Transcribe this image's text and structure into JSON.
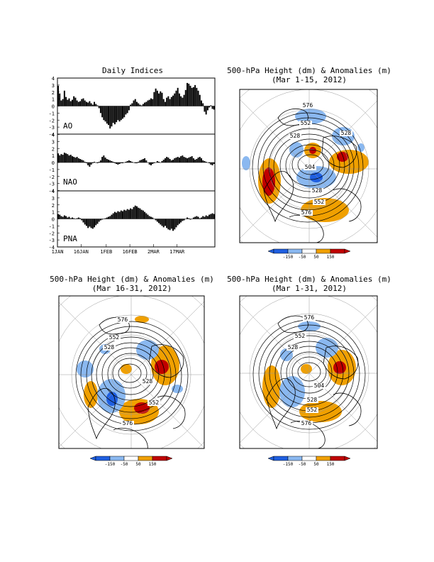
{
  "indices_panel": {
    "title": "Daily Indices",
    "x_tick_labels": [
      "1JAN",
      "16JAN",
      "1FEB",
      "16FEB",
      "2MAR",
      "17MAR"
    ],
    "y_tick_labels": [
      "4",
      "3",
      "2",
      "1",
      "0",
      "-1",
      "-2",
      "-3",
      "-4"
    ]
  },
  "maps": [
    {
      "title": "500-hPa Height (dm) & Anomalies (m)",
      "subtitle": "(Mar 1-15, 2012)",
      "contour_labels": [
        "576",
        "552",
        "528",
        "528",
        "504",
        "528",
        "552",
        "576"
      ],
      "colorbar": [
        "-150",
        "-50",
        "50",
        "150"
      ]
    },
    {
      "title": "500-hPa Height (dm) & Anomalies (m)",
      "subtitle": "(Mar 16-31, 2012)",
      "contour_labels": [
        "576",
        "552",
        "528",
        "528",
        "552",
        "576"
      ],
      "colorbar": [
        "-150",
        "-50",
        "50",
        "150"
      ]
    },
    {
      "title": "500-hPa Height (dm) & Anomalies (m)",
      "subtitle": "(Mar 1-31, 2012)",
      "contour_labels": [
        "576",
        "552",
        "528",
        "504",
        "528",
        "552",
        "576"
      ],
      "colorbar": [
        "-150",
        "-50",
        "50",
        "150"
      ]
    }
  ],
  "colors": {
    "strong_negative": "#1f5fe0",
    "negative": "#8ab8f0",
    "positive": "#f0a000",
    "strong_positive": "#c00000"
  },
  "chart_data": [
    {
      "type": "bar",
      "name": "AO",
      "x_label_dates": [
        "1JAN",
        "16JAN",
        "1FEB",
        "16FEB",
        "2MAR",
        "17MAR"
      ],
      "ylim": [
        -4,
        4
      ],
      "values": [
        2.9,
        1.8,
        0.8,
        1.0,
        2.2,
        1.3,
        0.9,
        1.1,
        0.7,
        0.9,
        1.4,
        1.2,
        0.8,
        0.6,
        0.7,
        1.0,
        1.1,
        0.8,
        0.6,
        0.5,
        0.7,
        0.4,
        0.2,
        0.6,
        0.3,
        0.1,
        -0.3,
        -1.0,
        -1.6,
        -2.0,
        -2.2,
        -2.5,
        -2.7,
        -3.2,
        -2.9,
        -2.4,
        -2.6,
        -2.3,
        -2.0,
        -2.2,
        -2.0,
        -1.8,
        -1.6,
        -1.2,
        -1.0,
        -0.6,
        0.2,
        0.4,
        0.8,
        1.0,
        0.6,
        0.4,
        0.2,
        0.1,
        0.3,
        0.5,
        0.6,
        0.8,
        0.9,
        1.1,
        1.0,
        2.0,
        2.5,
        2.2,
        1.8,
        2.1,
        1.9,
        1.0,
        0.6,
        1.2,
        1.4,
        1.0,
        1.3,
        1.5,
        1.8,
        2.2,
        2.6,
        1.8,
        1.4,
        1.2,
        1.6,
        2.3,
        3.3,
        3.2,
        2.9,
        2.6,
        2.7,
        3.0,
        2.6,
        2.2,
        1.6,
        0.8,
        0.4,
        -0.8,
        -1.2,
        -0.6,
        -0.2,
        0.1,
        -0.4,
        -0.5
      ]
    },
    {
      "type": "bar",
      "name": "NAO",
      "x_label_dates": [
        "1JAN",
        "16JAN",
        "1FEB",
        "16FEB",
        "2MAR",
        "17MAR"
      ],
      "ylim": [
        -4,
        4
      ],
      "values": [
        1.3,
        1.0,
        1.2,
        1.1,
        1.4,
        1.3,
        1.2,
        1.0,
        1.1,
        0.9,
        0.8,
        0.7,
        0.8,
        0.6,
        0.5,
        0.4,
        0.3,
        0.1,
        -0.1,
        -0.4,
        -0.6,
        -0.3,
        -0.1,
        0.1,
        0.0,
        -0.1,
        0.1,
        0.3,
        0.8,
        1.0,
        0.7,
        0.5,
        0.4,
        0.3,
        0.2,
        0.1,
        -0.1,
        -0.2,
        -0.3,
        -0.2,
        -0.1,
        -0.1,
        0.0,
        0.1,
        0.2,
        0.3,
        0.2,
        0.1,
        0.0,
        -0.1,
        -0.1,
        0.1,
        0.3,
        0.4,
        0.5,
        0.6,
        0.3,
        0.0,
        -0.3,
        -0.4,
        -0.2,
        -0.1,
        0.0,
        0.2,
        0.1,
        0.0,
        0.2,
        0.4,
        0.6,
        0.8,
        0.7,
        0.5,
        0.3,
        0.4,
        0.6,
        0.7,
        0.8,
        0.7,
        0.9,
        1.0,
        0.8,
        0.7,
        0.6,
        0.7,
        0.8,
        0.9,
        0.6,
        0.4,
        0.5,
        0.7,
        0.8,
        0.6,
        0.3,
        0.2,
        0.1,
        0.0,
        -0.1,
        -0.3,
        -0.4,
        -0.2
      ]
    },
    {
      "type": "bar",
      "name": "PNA",
      "x_label_dates": [
        "1JAN",
        "16JAN",
        "1FEB",
        "16FEB",
        "2MAR",
        "17MAR"
      ],
      "ylim": [
        -4,
        4
      ],
      "values": [
        0.7,
        0.6,
        0.4,
        0.3,
        0.5,
        0.4,
        0.2,
        0.3,
        0.1,
        0.2,
        0.1,
        0.0,
        0.1,
        0.2,
        0.1,
        -0.2,
        -0.5,
        -0.8,
        -1.0,
        -1.3,
        -1.1,
        -1.3,
        -1.4,
        -1.2,
        -0.9,
        -0.7,
        -0.4,
        -0.2,
        -0.1,
        0.0,
        0.1,
        0.2,
        0.3,
        0.4,
        0.6,
        0.8,
        1.0,
        0.9,
        1.1,
        1.0,
        1.2,
        1.1,
        1.3,
        1.2,
        1.4,
        1.3,
        1.5,
        1.4,
        1.7,
        1.9,
        1.8,
        1.6,
        1.5,
        1.3,
        1.2,
        1.0,
        0.8,
        0.6,
        0.4,
        0.3,
        0.2,
        0.0,
        -0.2,
        -0.4,
        -0.6,
        -0.8,
        -1.0,
        -1.2,
        -1.0,
        -1.3,
        -1.5,
        -1.6,
        -1.4,
        -1.7,
        -1.5,
        -1.2,
        -0.9,
        -0.7,
        -0.5,
        -0.3,
        -0.2,
        0.0,
        0.2,
        0.1,
        -0.1,
        0.0,
        0.2,
        0.3,
        0.4,
        0.3,
        0.1,
        0.2,
        0.4,
        0.3,
        0.5,
        0.4,
        0.6,
        0.7,
        0.8,
        0.7
      ]
    }
  ]
}
